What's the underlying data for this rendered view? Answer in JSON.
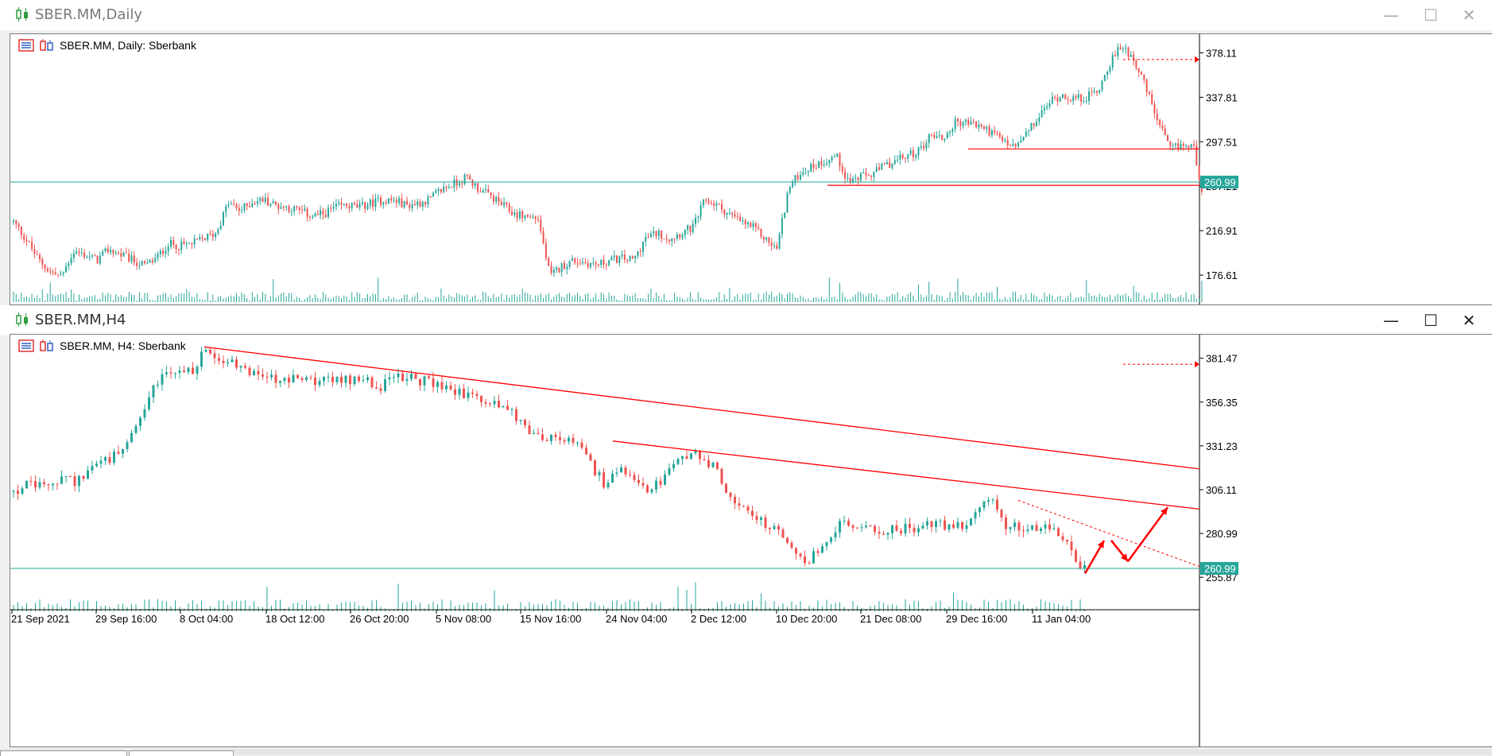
{
  "top_window": {
    "title": "SBER.MM,Daily",
    "chart_label": "SBER.MM, Daily:  Sberbank",
    "price_ticks": [
      "378.11",
      "337.81",
      "297.51",
      "257.21",
      "216.91",
      "176.61"
    ],
    "current_price": "260.99",
    "price_range": [
      150,
      395
    ]
  },
  "bottom_window": {
    "title": "SBER.MM,H4",
    "chart_label": "SBER.MM, H4:  Sberbank",
    "price_ticks": [
      "381.47",
      "356.35",
      "331.23",
      "306.11",
      "280.99",
      "255.87"
    ],
    "current_price": "260.99",
    "date_ticks": [
      "21 Sep 2021",
      "29 Sep 16:00",
      "8 Oct 04:00",
      "18 Oct 12:00",
      "26 Oct 20:00",
      "5 Nov 08:00",
      "15 Nov 16:00",
      "24 Nov 04:00",
      "2 Dec 12:00",
      "10 Dec 20:00",
      "21 Dec 08:00",
      "29 Dec 16:00",
      "11 Jan 04:00"
    ],
    "price_range": [
      240,
      395
    ]
  },
  "window_buttons": {
    "minimize": "—",
    "maximize": "☐",
    "close": "✕"
  },
  "colors": {
    "bull": "#26a69a",
    "bear": "#ef5350",
    "line_red": "#ff0000",
    "hline_teal": "#26a69a",
    "axis": "#000000"
  },
  "chart_data": [
    {
      "type": "candlestick",
      "title": "SBER.MM, Daily:  Sberbank",
      "ylim": [
        150,
        395
      ],
      "path": [
        [
          0,
          225
        ],
        [
          15,
          210
        ],
        [
          30,
          192
        ],
        [
          45,
          180
        ],
        [
          60,
          175
        ],
        [
          75,
          198
        ],
        [
          90,
          195
        ],
        [
          105,
          190
        ],
        [
          120,
          200
        ],
        [
          135,
          195
        ],
        [
          150,
          190
        ],
        [
          165,
          185
        ],
        [
          180,
          192
        ],
        [
          195,
          205
        ],
        [
          210,
          203
        ],
        [
          225,
          205
        ],
        [
          240,
          210
        ],
        [
          255,
          215
        ],
        [
          270,
          242
        ],
        [
          285,
          235
        ],
        [
          300,
          243
        ],
        [
          315,
          245
        ],
        [
          330,
          240
        ],
        [
          345,
          238
        ],
        [
          360,
          235
        ],
        [
          375,
          230
        ],
        [
          390,
          232
        ],
        [
          405,
          238
        ],
        [
          420,
          240
        ],
        [
          435,
          238
        ],
        [
          450,
          242
        ],
        [
          465,
          245
        ],
        [
          480,
          244
        ],
        [
          495,
          240
        ],
        [
          510,
          242
        ],
        [
          525,
          246
        ],
        [
          540,
          255
        ],
        [
          555,
          260
        ],
        [
          570,
          265
        ],
        [
          585,
          255
        ],
        [
          600,
          248
        ],
        [
          615,
          240
        ],
        [
          630,
          232
        ],
        [
          645,
          230
        ],
        [
          660,
          228
        ],
        [
          675,
          175
        ],
        [
          690,
          185
        ],
        [
          705,
          190
        ],
        [
          720,
          188
        ],
        [
          735,
          186
        ],
        [
          750,
          190
        ],
        [
          765,
          192
        ],
        [
          780,
          190
        ],
        [
          795,
          210
        ],
        [
          810,
          215
        ],
        [
          825,
          210
        ],
        [
          840,
          215
        ],
        [
          855,
          220
        ],
        [
          870,
          245
        ],
        [
          885,
          240
        ],
        [
          900,
          232
        ],
        [
          915,
          225
        ],
        [
          930,
          220
        ],
        [
          945,
          210
        ],
        [
          960,
          200
        ],
        [
          975,
          255
        ],
        [
          990,
          270
        ],
        [
          1005,
          275
        ],
        [
          1020,
          280
        ],
        [
          1035,
          285
        ],
        [
          1050,
          262
        ],
        [
          1065,
          265
        ],
        [
          1080,
          268
        ],
        [
          1095,
          275
        ],
        [
          1110,
          280
        ],
        [
          1125,
          285
        ],
        [
          1140,
          290
        ],
        [
          1155,
          305
        ],
        [
          1170,
          300
        ],
        [
          1185,
          315
        ],
        [
          1200,
          315
        ],
        [
          1215,
          312
        ],
        [
          1230,
          306
        ],
        [
          1245,
          298
        ],
        [
          1260,
          292
        ],
        [
          1275,
          305
        ],
        [
          1290,
          320
        ],
        [
          1305,
          335
        ],
        [
          1320,
          340
        ],
        [
          1335,
          336
        ],
        [
          1350,
          338
        ],
        [
          1365,
          345
        ],
        [
          1380,
          370
        ],
        [
          1395,
          385
        ],
        [
          1410,
          372
        ],
        [
          1425,
          345
        ],
        [
          1440,
          315
        ],
        [
          1455,
          290
        ],
        [
          1470,
          295
        ],
        [
          1485,
          292
        ],
        [
          1495,
          255
        ]
      ]
    },
    {
      "type": "candlestick",
      "title": "SBER.MM, H4:  Sberbank",
      "ylim": [
        240,
        395
      ],
      "path": [
        [
          0,
          305
        ],
        [
          20,
          309
        ],
        [
          40,
          307
        ],
        [
          60,
          312
        ],
        [
          80,
          311
        ],
        [
          100,
          320
        ],
        [
          120,
          323
        ],
        [
          140,
          329
        ],
        [
          160,
          345
        ],
        [
          175,
          365
        ],
        [
          190,
          372
        ],
        [
          210,
          374
        ],
        [
          230,
          375
        ],
        [
          240,
          388
        ],
        [
          260,
          382
        ],
        [
          280,
          377
        ],
        [
          300,
          374
        ],
        [
          320,
          370
        ],
        [
          340,
          368
        ],
        [
          360,
          370
        ],
        [
          380,
          369
        ],
        [
          400,
          368
        ],
        [
          420,
          369
        ],
        [
          440,
          371
        ],
        [
          460,
          365
        ],
        [
          480,
          370
        ],
        [
          500,
          370
        ],
        [
          520,
          368
        ],
        [
          540,
          365
        ],
        [
          560,
          362
        ],
        [
          580,
          360
        ],
        [
          600,
          355
        ],
        [
          615,
          356
        ],
        [
          630,
          348
        ],
        [
          650,
          340
        ],
        [
          670,
          336
        ],
        [
          690,
          335
        ],
        [
          710,
          332
        ],
        [
          730,
          318
        ],
        [
          745,
          308
        ],
        [
          760,
          318
        ],
        [
          780,
          310
        ],
        [
          800,
          305
        ],
        [
          820,
          314
        ],
        [
          840,
          323
        ],
        [
          860,
          326
        ],
        [
          880,
          320
        ],
        [
          900,
          302
        ],
        [
          920,
          297
        ],
        [
          940,
          288
        ],
        [
          960,
          282
        ],
        [
          980,
          270
        ],
        [
          1000,
          265
        ],
        [
          1020,
          275
        ],
        [
          1040,
          287
        ],
        [
          1060,
          285
        ],
        [
          1080,
          282
        ],
        [
          1100,
          283
        ],
        [
          1120,
          284
        ],
        [
          1140,
          285
        ],
        [
          1160,
          286
        ],
        [
          1180,
          285
        ],
        [
          1200,
          287
        ],
        [
          1220,
          300
        ],
        [
          1235,
          298
        ],
        [
          1250,
          284
        ],
        [
          1270,
          285
        ],
        [
          1290,
          284
        ],
        [
          1310,
          282
        ],
        [
          1330,
          272
        ],
        [
          1345,
          260
        ],
        [
          1350,
          263
        ]
      ]
    }
  ]
}
